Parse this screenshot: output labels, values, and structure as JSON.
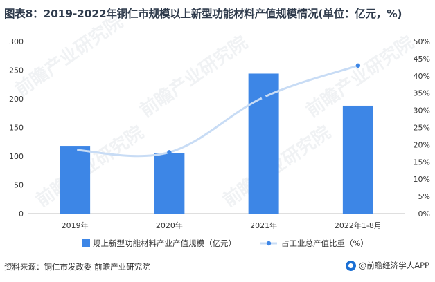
{
  "title": "图表8：2019-2022年铜仁市规模以上新型功能材料产值规模情况(单位：亿元，%)",
  "chart_data": {
    "type": "bar",
    "categories": [
      "2019年",
      "2020年",
      "2021年",
      "2022年1-8月"
    ],
    "series": [
      {
        "name": "规上新型功能材料产业产值规模（亿元）",
        "type": "bar",
        "axis": "left",
        "values": [
          118,
          106,
          244,
          188
        ],
        "color": "#3d86e6"
      },
      {
        "name": "占工业总产值比重（%）",
        "type": "line",
        "axis": "right",
        "values": [
          18.5,
          17.8,
          33.8,
          43.0
        ],
        "color": "#c8dcf5",
        "marker_color": "#3d86e6"
      }
    ],
    "left_axis": {
      "min": 0,
      "max": 300,
      "ticks": [
        "0",
        "50",
        "100",
        "150",
        "200",
        "250",
        "300"
      ]
    },
    "right_axis": {
      "min": 0,
      "max": 50,
      "ticks": [
        "0%",
        "5%",
        "10%",
        "15%",
        "20%",
        "25%",
        "30%",
        "35%",
        "40%",
        "45%",
        "50%"
      ]
    },
    "grid": false,
    "legend_position": "bottom"
  },
  "watermark": "前瞻产业研究院",
  "source": "资料来源：铜仁市发改委 前瞻产业研究院",
  "brand": "@前瞻经济学人APP"
}
